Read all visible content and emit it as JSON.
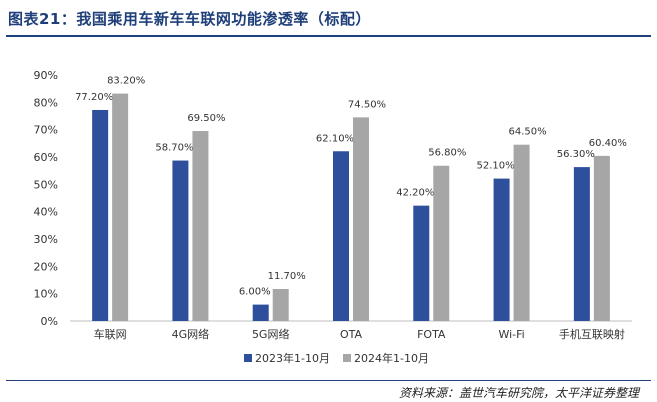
{
  "header": {
    "title": "图表21：我国乘用车新车车联网功能渗透率（标配）"
  },
  "footer": {
    "source": "资料来源：盖世汽车研究院，太平洋证券整理"
  },
  "colors": {
    "series_2023": "#2e4f9c",
    "series_2024": "#a6a6a6",
    "rule": "#1f3f7a"
  },
  "chart_data": {
    "type": "bar",
    "categories": [
      "车联网",
      "4G网络",
      "5G网络",
      "OTA",
      "FOTA",
      "Wi-Fi",
      "手机互联映射"
    ],
    "series": [
      {
        "name": "2023年1-10月",
        "values": [
          77.2,
          58.7,
          6.0,
          62.1,
          42.2,
          52.1,
          56.3
        ],
        "labels": [
          "77.20%",
          "58.70%",
          "6.00%",
          "62.10%",
          "42.20%",
          "52.10%",
          "56.30%"
        ]
      },
      {
        "name": "2024年1-10月",
        "values": [
          83.2,
          69.5,
          11.7,
          74.5,
          56.8,
          64.5,
          60.4
        ],
        "labels": [
          "83.20%",
          "69.50%",
          "11.70%",
          "74.50%",
          "56.80%",
          "64.50%",
          "60.40%"
        ]
      }
    ],
    "yticks": [
      "0%",
      "10%",
      "20%",
      "30%",
      "40%",
      "50%",
      "60%",
      "70%",
      "80%",
      "90%"
    ],
    "ylim": [
      0,
      90
    ],
    "grid": false,
    "legend_position": "bottom-center"
  }
}
